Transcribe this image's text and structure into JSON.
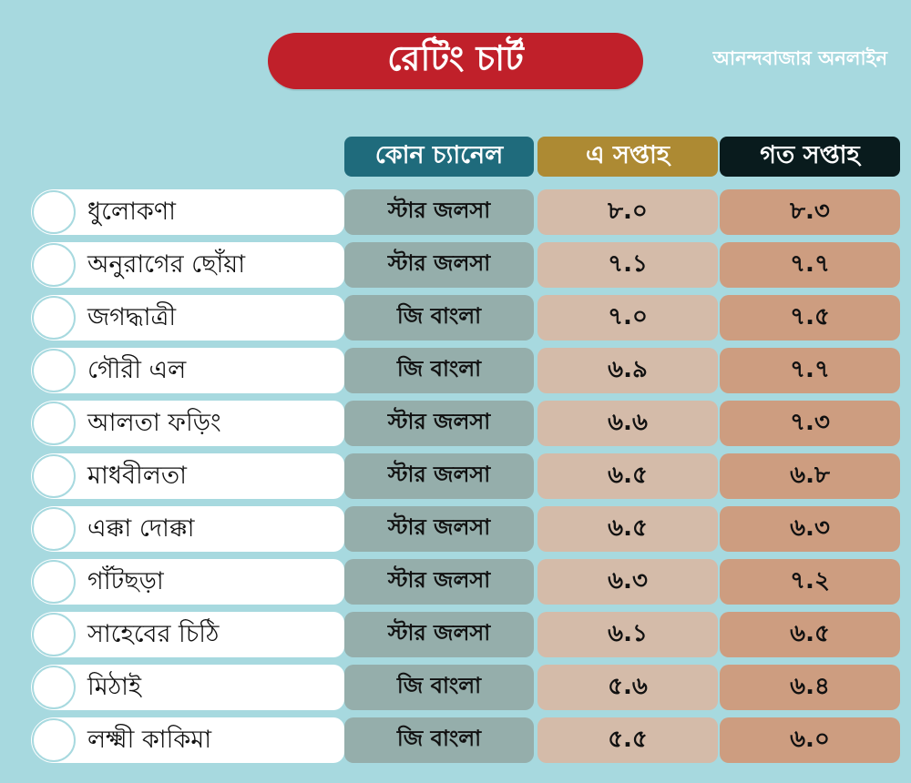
{
  "title": "রেটিং চার্ট",
  "brand": "আনন্দবাজার অনলাইন",
  "headers": {
    "channel": "কোন চ্যানেল",
    "this_week": "এ সপ্তাহ",
    "last_week": "গত সপ্তাহ"
  },
  "colors": {
    "background": "#a7d9df",
    "title_pill": "#c0202a",
    "header_channel": "#1f6b7c",
    "header_this_week": "#ad8a33",
    "header_last_week": "#091b1d",
    "cell_channel": "#95aeab",
    "cell_this_week": "#d4bba9",
    "cell_last_week": "#cd9d80"
  },
  "rows": [
    {
      "name": "ধুলোকণা",
      "channel": "স্টার জলসা",
      "this_week": "৮.০",
      "last_week": "৮.৩"
    },
    {
      "name": "অনুরাগের ছোঁয়া",
      "channel": "স্টার জলসা",
      "this_week": "৭.১",
      "last_week": "৭.৭"
    },
    {
      "name": "জগদ্ধাত্রী",
      "channel": "জি বাংলা",
      "this_week": "৭.০",
      "last_week": "৭.৫"
    },
    {
      "name": "গৌরী এল",
      "channel": "জি বাংলা",
      "this_week": "৬.৯",
      "last_week": "৭.৭"
    },
    {
      "name": "আলতা ফড়িং",
      "channel": "স্টার জলসা",
      "this_week": "৬.৬",
      "last_week": "৭.৩"
    },
    {
      "name": "মাধবীলতা",
      "channel": "স্টার জলসা",
      "this_week": "৬.৫",
      "last_week": "৬.৮"
    },
    {
      "name": "এক্কা দোক্কা",
      "channel": "স্টার জলসা",
      "this_week": "৬.৫",
      "last_week": "৬.৩"
    },
    {
      "name": "গাঁটছড়া",
      "channel": "স্টার জলসা",
      "this_week": "৬.৩",
      "last_week": "৭.২"
    },
    {
      "name": "সাহেবের চিঠি",
      "channel": "স্টার জলসা",
      "this_week": "৬.১",
      "last_week": "৬.৫"
    },
    {
      "name": "মিঠাই",
      "channel": "জি বাংলা",
      "this_week": "৫.৬",
      "last_week": "৬.৪"
    },
    {
      "name": "লক্ষ্মী কাকিমা",
      "channel": "জি বাংলা",
      "this_week": "৫.৫",
      "last_week": "৬.০"
    }
  ]
}
